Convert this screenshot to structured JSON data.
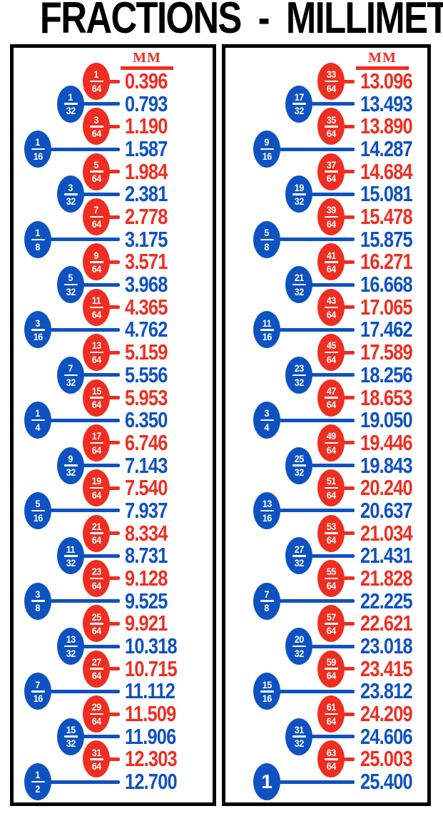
{
  "title": "FRACTIONS - MILLIMETERS",
  "colors": {
    "red": "#ee2e21",
    "blue": "#0e52c2",
    "title": "#000000",
    "background": "#ffffff"
  },
  "columns": [
    {
      "mm_label": "MM",
      "rows": [
        {
          "num": "1",
          "den": "64",
          "mm": "0.396",
          "color": "red"
        },
        {
          "num": "1",
          "den": "32",
          "mm": "0.793",
          "color": "blue"
        },
        {
          "num": "3",
          "den": "64",
          "mm": "1.190",
          "color": "red"
        },
        {
          "num": "1",
          "den": "16",
          "mm": "1.587",
          "color": "blue"
        },
        {
          "num": "5",
          "den": "64",
          "mm": "1.984",
          "color": "red"
        },
        {
          "num": "3",
          "den": "32",
          "mm": "2.381",
          "color": "blue"
        },
        {
          "num": "7",
          "den": "64",
          "mm": "2.778",
          "color": "red"
        },
        {
          "num": "1",
          "den": "8",
          "mm": "3.175",
          "color": "blue"
        },
        {
          "num": "9",
          "den": "64",
          "mm": "3.571",
          "color": "red"
        },
        {
          "num": "5",
          "den": "32",
          "mm": "3.968",
          "color": "blue"
        },
        {
          "num": "11",
          "den": "64",
          "mm": "4.365",
          "color": "red"
        },
        {
          "num": "3",
          "den": "16",
          "mm": "4.762",
          "color": "blue"
        },
        {
          "num": "13",
          "den": "64",
          "mm": "5.159",
          "color": "red"
        },
        {
          "num": "7",
          "den": "32",
          "mm": "5.556",
          "color": "blue"
        },
        {
          "num": "15",
          "den": "64",
          "mm": "5.953",
          "color": "red"
        },
        {
          "num": "1",
          "den": "4",
          "mm": "6.350",
          "color": "blue"
        },
        {
          "num": "17",
          "den": "64",
          "mm": "6.746",
          "color": "red"
        },
        {
          "num": "9",
          "den": "32",
          "mm": "7.143",
          "color": "blue"
        },
        {
          "num": "19",
          "den": "64",
          "mm": "7.540",
          "color": "red"
        },
        {
          "num": "5",
          "den": "16",
          "mm": "7.937",
          "color": "blue"
        },
        {
          "num": "21",
          "den": "64",
          "mm": "8.334",
          "color": "red"
        },
        {
          "num": "11",
          "den": "32",
          "mm": "8.731",
          "color": "blue"
        },
        {
          "num": "23",
          "den": "64",
          "mm": "9.128",
          "color": "red"
        },
        {
          "num": "3",
          "den": "8",
          "mm": "9.525",
          "color": "blue"
        },
        {
          "num": "25",
          "den": "64",
          "mm": "9.921",
          "color": "red"
        },
        {
          "num": "13",
          "den": "32",
          "mm": "10.318",
          "color": "blue"
        },
        {
          "num": "27",
          "den": "64",
          "mm": "10.715",
          "color": "red"
        },
        {
          "num": "7",
          "den": "16",
          "mm": "11.112",
          "color": "blue"
        },
        {
          "num": "29",
          "den": "64",
          "mm": "11.509",
          "color": "red"
        },
        {
          "num": "15",
          "den": "32",
          "mm": "11.906",
          "color": "blue"
        },
        {
          "num": "31",
          "den": "64",
          "mm": "12.303",
          "color": "red"
        },
        {
          "num": "1",
          "den": "2",
          "mm": "12.700",
          "color": "blue"
        }
      ]
    },
    {
      "mm_label": "MM",
      "rows": [
        {
          "num": "33",
          "den": "64",
          "mm": "13.096",
          "color": "red"
        },
        {
          "num": "17",
          "den": "32",
          "mm": "13.493",
          "color": "blue"
        },
        {
          "num": "35",
          "den": "64",
          "mm": "13.890",
          "color": "red"
        },
        {
          "num": "9",
          "den": "16",
          "mm": "14.287",
          "color": "blue"
        },
        {
          "num": "37",
          "den": "64",
          "mm": "14.684",
          "color": "red"
        },
        {
          "num": "19",
          "den": "32",
          "mm": "15.081",
          "color": "blue"
        },
        {
          "num": "39",
          "den": "64",
          "mm": "15.478",
          "color": "red"
        },
        {
          "num": "5",
          "den": "8",
          "mm": "15.875",
          "color": "blue"
        },
        {
          "num": "41",
          "den": "64",
          "mm": "16.271",
          "color": "red"
        },
        {
          "num": "21",
          "den": "32",
          "mm": "16.668",
          "color": "blue"
        },
        {
          "num": "43",
          "den": "64",
          "mm": "17.065",
          "color": "red"
        },
        {
          "num": "11",
          "den": "16",
          "mm": "17.462",
          "color": "blue"
        },
        {
          "num": "45",
          "den": "64",
          "mm": "17.589",
          "color": "red"
        },
        {
          "num": "23",
          "den": "32",
          "mm": "18.256",
          "color": "blue"
        },
        {
          "num": "47",
          "den": "64",
          "mm": "18.653",
          "color": "red"
        },
        {
          "num": "3",
          "den": "4",
          "mm": "19.050",
          "color": "blue"
        },
        {
          "num": "49",
          "den": "64",
          "mm": "19.446",
          "color": "red"
        },
        {
          "num": "25",
          "den": "32",
          "mm": "19.843",
          "color": "blue"
        },
        {
          "num": "51",
          "den": "64",
          "mm": "20.240",
          "color": "red"
        },
        {
          "num": "13",
          "den": "16",
          "mm": "20.637",
          "color": "blue"
        },
        {
          "num": "53",
          "den": "64",
          "mm": "21.034",
          "color": "red"
        },
        {
          "num": "27",
          "den": "32",
          "mm": "21.431",
          "color": "blue"
        },
        {
          "num": "55",
          "den": "64",
          "mm": "21.828",
          "color": "red"
        },
        {
          "num": "7",
          "den": "8",
          "mm": "22.225",
          "color": "blue"
        },
        {
          "num": "57",
          "den": "64",
          "mm": "22.621",
          "color": "red"
        },
        {
          "num": "20",
          "den": "32",
          "mm": "23.018",
          "color": "blue"
        },
        {
          "num": "59",
          "den": "64",
          "mm": "23.415",
          "color": "red"
        },
        {
          "num": "15",
          "den": "16",
          "mm": "23.812",
          "color": "blue"
        },
        {
          "num": "61",
          "den": "64",
          "mm": "24.209",
          "color": "red"
        },
        {
          "num": "31",
          "den": "32",
          "mm": "24.606",
          "color": "blue"
        },
        {
          "num": "63",
          "den": "64",
          "mm": "25.003",
          "color": "red"
        },
        {
          "num": "1",
          "den": null,
          "mm": "25.400",
          "color": "blue"
        }
      ]
    }
  ],
  "chart_data": {
    "type": "table",
    "title": "FRACTIONS - MILLIMETERS",
    "columns": [
      "fraction",
      "mm"
    ],
    "rows": [
      [
        "1/64",
        0.396
      ],
      [
        "1/32",
        0.793
      ],
      [
        "3/64",
        1.19
      ],
      [
        "1/16",
        1.587
      ],
      [
        "5/64",
        1.984
      ],
      [
        "3/32",
        2.381
      ],
      [
        "7/64",
        2.778
      ],
      [
        "1/8",
        3.175
      ],
      [
        "9/64",
        3.571
      ],
      [
        "5/32",
        3.968
      ],
      [
        "11/64",
        4.365
      ],
      [
        "3/16",
        4.762
      ],
      [
        "13/64",
        5.159
      ],
      [
        "7/32",
        5.556
      ],
      [
        "15/64",
        5.953
      ],
      [
        "1/4",
        6.35
      ],
      [
        "17/64",
        6.746
      ],
      [
        "9/32",
        7.143
      ],
      [
        "19/64",
        7.54
      ],
      [
        "5/16",
        7.937
      ],
      [
        "21/64",
        8.334
      ],
      [
        "11/32",
        8.731
      ],
      [
        "23/64",
        9.128
      ],
      [
        "3/8",
        9.525
      ],
      [
        "25/64",
        9.921
      ],
      [
        "13/32",
        10.318
      ],
      [
        "27/64",
        10.715
      ],
      [
        "7/16",
        11.112
      ],
      [
        "29/64",
        11.509
      ],
      [
        "15/32",
        11.906
      ],
      [
        "31/64",
        12.303
      ],
      [
        "1/2",
        12.7
      ],
      [
        "33/64",
        13.096
      ],
      [
        "17/32",
        13.493
      ],
      [
        "35/64",
        13.89
      ],
      [
        "9/16",
        14.287
      ],
      [
        "37/64",
        14.684
      ],
      [
        "19/32",
        15.081
      ],
      [
        "39/64",
        15.478
      ],
      [
        "5/8",
        15.875
      ],
      [
        "41/64",
        16.271
      ],
      [
        "21/32",
        16.668
      ],
      [
        "43/64",
        17.065
      ],
      [
        "11/16",
        17.462
      ],
      [
        "45/64",
        17.589
      ],
      [
        "23/32",
        18.256
      ],
      [
        "47/64",
        18.653
      ],
      [
        "3/4",
        19.05
      ],
      [
        "49/64",
        19.446
      ],
      [
        "25/32",
        19.843
      ],
      [
        "51/64",
        20.24
      ],
      [
        "13/16",
        20.637
      ],
      [
        "53/64",
        21.034
      ],
      [
        "27/32",
        21.431
      ],
      [
        "55/64",
        21.828
      ],
      [
        "7/8",
        22.225
      ],
      [
        "57/64",
        22.621
      ],
      [
        "20/32",
        23.018
      ],
      [
        "59/64",
        23.415
      ],
      [
        "15/16",
        23.812
      ],
      [
        "61/64",
        24.209
      ],
      [
        "31/32",
        24.606
      ],
      [
        "63/64",
        25.003
      ],
      [
        "1",
        25.4
      ]
    ]
  }
}
